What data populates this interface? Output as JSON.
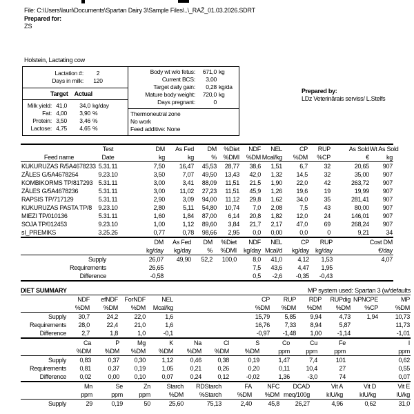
{
  "page": {
    "file_line": "File: C:\\Users\\lauri\\Documents\\Spartan Dairy 3\\Sample Files\\..\\_RAŽ_01.03.2026.SDRT",
    "prepared_for_label": "Prepared for:",
    "prepared_for_value": "ZS",
    "animal_type": "Holstein, Lactating cow",
    "prepared_by_label": "Prepared by:",
    "prepared_by_value": "LDz Veterinārais serviss/ L.Stelfs"
  },
  "animal_box": {
    "info_rows": [
      {
        "label": "Lactation #:",
        "value": "2"
      },
      {
        "label": "Days in milk:",
        "value": "120"
      }
    ],
    "target_header": "Target",
    "actual_header": "Actual",
    "rows": [
      {
        "label": "Milk yield:",
        "target": "41,0",
        "actual": "34,0",
        "unit": "kg/day"
      },
      {
        "label": "Fat:",
        "target": "4,00",
        "actual": "3,90",
        "unit": "%"
      },
      {
        "label": "Protein:",
        "target": "3,50",
        "actual": "3,46",
        "unit": "%"
      },
      {
        "label": "Lactose:",
        "target": "4,75",
        "actual": "4,65",
        "unit": "%"
      }
    ]
  },
  "body_box": {
    "rows": [
      {
        "label": "Body wt w/o fetus:",
        "value": "671,0",
        "unit": "kg"
      },
      {
        "label": "Current BCS:",
        "value": "3,00",
        "unit": ""
      },
      {
        "label": "Target daily gain:",
        "value": "0,28",
        "unit": "kg/da"
      },
      {
        "label": "Mature body weight:",
        "value": "720,0",
        "unit": "kg"
      },
      {
        "label": "Days pregnant:",
        "value": "0",
        "unit": ""
      }
    ],
    "notes": [
      "Thermoneutral zone",
      "No work",
      "Feed additive: None"
    ]
  },
  "feed_table": {
    "header_rows": [
      [
        "",
        "Test",
        "DM",
        "As Fed",
        "DM",
        "%Diet",
        "NDF",
        "NEL",
        "CP",
        "RUP",
        "As Sold",
        "Wt As Sold"
      ],
      [
        "Feed name",
        "Date",
        "kg",
        "kg",
        "%",
        "%DMI",
        "%DM",
        "Mcal/kg",
        "%DM",
        "%CP",
        "€",
        "kg"
      ]
    ],
    "rows": [
      [
        "KUKURUZAS R/5A4678233",
        "5.31.11",
        "7,50",
        "16,47",
        "45,53",
        "28,77",
        "38,6",
        "1,51",
        "6,7",
        "32",
        "20,65",
        "907"
      ],
      [
        "ZĀLES G/5A4678264",
        "9.23.10",
        "3,50",
        "7,07",
        "49,50",
        "13,43",
        "42,0",
        "1,32",
        "14,5",
        "32",
        "35,00",
        "907"
      ],
      [
        "KOMBIKORMS TP/817293",
        "5.31.11",
        "3,00",
        "3,41",
        "88,09",
        "11,51",
        "21,5",
        "1,90",
        "22,0",
        "42",
        "263,72",
        "907"
      ],
      [
        "ZĀLES G/5A4678236",
        "5.31.11",
        "3,00",
        "11,02",
        "27,23",
        "11,51",
        "45,9",
        "1,26",
        "19,6",
        "19",
        "19,99",
        "907"
      ],
      [
        "RAPSIS TP/717129",
        "5.31.11",
        "2,90",
        "3,09",
        "94,00",
        "11,12",
        "29,8",
        "1,62",
        "34,0",
        "35",
        "281,41",
        "907"
      ],
      [
        "KUKURUZAS PASTA TP/8",
        "9.23.10",
        "2,80",
        "5,11",
        "54,80",
        "10,74",
        "7,0",
        "2,08",
        "7,5",
        "43",
        "80,00",
        "907"
      ],
      [
        "MIEZI TP/010136",
        "5.31.11",
        "1,60",
        "1,84",
        "87,00",
        "6,14",
        "20,8",
        "1,82",
        "12,0",
        "24",
        "146,01",
        "907"
      ],
      [
        "SOJA TP/012453",
        "9.23.10",
        "1,00",
        "1,12",
        "89,60",
        "3,84",
        "21,7",
        "2,17",
        "47,0",
        "69",
        "268,24",
        "907"
      ],
      [
        "sI_PREMIKS",
        "3.25.26",
        "0,77",
        "0,78",
        "98,66",
        "2,95",
        "0,0",
        "0,00",
        "0,0",
        "0",
        "9,21",
        "34"
      ]
    ]
  },
  "supply_table": {
    "header_rows": [
      [
        "",
        "DM",
        "As Fed",
        "DM",
        "%Diet",
        "NDF",
        "NEL",
        "CP",
        "RUP",
        "Cost DM"
      ],
      [
        "",
        "kg/day",
        "kg/day",
        "%",
        "%DMI",
        "kg/day",
        "Mcal/d",
        "kg/day",
        "kg/day",
        "€/day"
      ]
    ],
    "rows": [
      [
        "Supply",
        "26,07",
        "49,90",
        "52,2",
        "100,0",
        "8,0",
        "41,0",
        "4,12",
        "1,53",
        "4,07"
      ],
      [
        "Requirements",
        "26,65",
        "",
        "",
        "",
        "7,5",
        "43,6",
        "4,47",
        "1,95",
        ""
      ],
      [
        "Difference",
        "-0,58",
        "",
        "",
        "",
        "0,5",
        "-2,6",
        "-0,35",
        "-0,43",
        ""
      ]
    ]
  },
  "diet_summary": {
    "title": "DIET SUMMARY",
    "mp_system": "MP system used:  Spartan 3 (w/defaults",
    "table1": {
      "header_rows": [
        [
          "",
          "NDF",
          "efNDF",
          "ForNDF",
          "NEL",
          "CP",
          "RUP",
          "RDP",
          "RUPdig",
          "NPNCPE",
          "MP"
        ],
        [
          "",
          "%DM",
          "%DM",
          "%DM",
          "Mcal/kg",
          "%DM",
          "%DM",
          "%DM",
          "%DM",
          "%CP",
          "%DM"
        ]
      ],
      "rows": [
        [
          "Supply",
          "30,7",
          "24,2",
          "22,0",
          "1,6",
          "15,79",
          "5,85",
          "9,94",
          "4,73",
          "1,94",
          "10,73"
        ],
        [
          "Requirements",
          "28,0",
          "22,4",
          "21,0",
          "1,6",
          "16,76",
          "7,33",
          "8,94",
          "5,87",
          "",
          "11,73"
        ],
        [
          "Difference",
          "2,7",
          "1,8",
          "1,0",
          "-0,1",
          "-0,97",
          "-1,48",
          "1,00",
          "-1,14",
          "",
          "-1,01"
        ]
      ]
    },
    "table2": {
      "header_rows": [
        [
          "",
          "Ca",
          "P",
          "Mg",
          "K",
          "Na",
          "Cl",
          "S",
          "Co",
          "Cu",
          "Fe",
          "I"
        ],
        [
          "",
          "%DM",
          "%DM",
          "%DM",
          "%DM",
          "%DM",
          "%DM",
          "%DM",
          "ppm",
          "ppm",
          "ppm",
          "ppm"
        ]
      ],
      "rows": [
        [
          "Supply",
          "0,83",
          "0,37",
          "0,30",
          "1,12",
          "0,46",
          "0,38",
          "0,19",
          "1,47",
          "7,4",
          "101",
          "0,62"
        ],
        [
          "Requirements",
          "0,81",
          "0,37",
          "0,19",
          "1,05",
          "0,21",
          "0,26",
          "0,20",
          "0,11",
          "10,4",
          "27",
          "0,55"
        ],
        [
          "Difference",
          "0,02",
          "0,00",
          "0,10",
          "0,07",
          "0,24",
          "0,12",
          "-0,02",
          "1,36",
          "-3,0",
          "74",
          "0,07"
        ]
      ]
    },
    "table3": {
      "header_rows": [
        [
          "",
          "Mn",
          "Se",
          "Zn",
          "Starch",
          "RDStarch",
          "FA",
          "NFC",
          "DCAD",
          "Vit A",
          "Vit D",
          "Vit E"
        ],
        [
          "",
          "ppm",
          "ppm",
          "ppm",
          "%DM",
          "%Starch",
          "%DM",
          "%DM",
          "meq/100g",
          "kIU/kg",
          "kIU/kg",
          "IU/kg"
        ]
      ],
      "rows": [
        [
          "Supply",
          "29",
          "0,19",
          "50",
          "25,60",
          "75,13",
          "2,40",
          "45,8",
          "26,27",
          "4,96",
          "0,62",
          "31,0"
        ]
      ]
    }
  }
}
